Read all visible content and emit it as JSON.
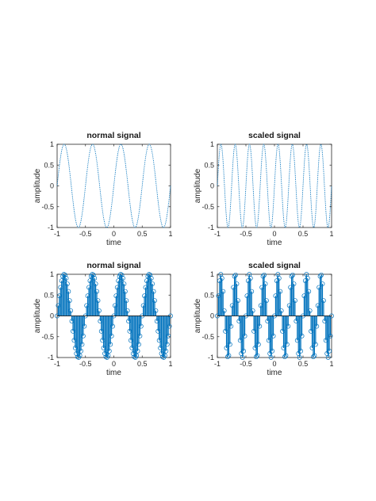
{
  "colors": {
    "series": "#0072BD",
    "axis": "#262626",
    "background": "#ffffff"
  },
  "chart_data": [
    {
      "type": "line",
      "title": "normal signal",
      "xlabel": "time",
      "ylabel": "amplitude",
      "xlim": [
        -1,
        1
      ],
      "ylim": [
        -1,
        1
      ],
      "xticks": [
        -1,
        -0.5,
        0,
        0.5,
        1
      ],
      "xtick_labels": [
        "-1",
        "-0.5",
        "0",
        "0.5",
        "1"
      ],
      "yticks": [
        -1,
        -0.5,
        0,
        0.5,
        1
      ],
      "ytick_labels": [
        "-1",
        "-0.5",
        "0",
        "0.5",
        "1"
      ],
      "grid": false,
      "series": [
        {
          "function": "sin(2*pi*2*t)",
          "frequency": 2,
          "x_range": [
            -1,
            1
          ],
          "style": "dotted line"
        }
      ]
    },
    {
      "type": "line",
      "title": "scaled signal",
      "xlabel": "time",
      "ylabel": "amplitude",
      "xlim": [
        -1,
        1
      ],
      "ylim": [
        -1,
        1
      ],
      "xticks": [
        -1,
        -0.5,
        0,
        0.5,
        1
      ],
      "xtick_labels": [
        "-1",
        "-0.5",
        "0",
        "0.5",
        "1"
      ],
      "yticks": [
        -1,
        -0.5,
        0,
        0.5,
        1
      ],
      "ytick_labels": [
        "-1",
        "-0.5",
        "0",
        "0.5",
        "1"
      ],
      "grid": false,
      "series": [
        {
          "function": "sin(2*pi*4*t)",
          "frequency": 4,
          "x_range": [
            -1,
            1
          ],
          "style": "dotted line"
        }
      ]
    },
    {
      "type": "stem",
      "title": "normal signal",
      "xlabel": "time",
      "ylabel": "amplitude",
      "xlim": [
        -1,
        1
      ],
      "ylim": [
        -1,
        1
      ],
      "xticks": [
        -1,
        -0.5,
        0,
        0.5,
        1
      ],
      "xtick_labels": [
        "-1",
        "-0.5",
        "0",
        "0.5",
        "1"
      ],
      "yticks": [
        -1,
        -0.5,
        0,
        0.5,
        1
      ],
      "ytick_labels": [
        "-1",
        "-0.5",
        "0",
        "0.5",
        "1"
      ],
      "grid": false,
      "series": [
        {
          "function": "sin(2*pi*2*t)",
          "frequency": 2,
          "x_range": [
            -1,
            1
          ],
          "sample_step": 0.02,
          "marker": "circle"
        }
      ]
    },
    {
      "type": "stem",
      "title": "scaled signal",
      "xlabel": "time",
      "ylabel": "amplitude",
      "xlim": [
        -1,
        1
      ],
      "ylim": [
        -1,
        1
      ],
      "xticks": [
        -1,
        -0.5,
        0,
        0.5,
        1
      ],
      "xtick_labels": [
        "-1",
        "-0.5",
        "0",
        "0.5",
        "1"
      ],
      "yticks": [
        -1,
        -0.5,
        0,
        0.5,
        1
      ],
      "ytick_labels": [
        "-1",
        "-0.5",
        "0",
        "0.5",
        "1"
      ],
      "grid": false,
      "series": [
        {
          "function": "sin(2*pi*4*t)",
          "frequency": 4,
          "x_range": [
            -1,
            1
          ],
          "sample_step": 0.02,
          "marker": "circle"
        }
      ]
    }
  ]
}
